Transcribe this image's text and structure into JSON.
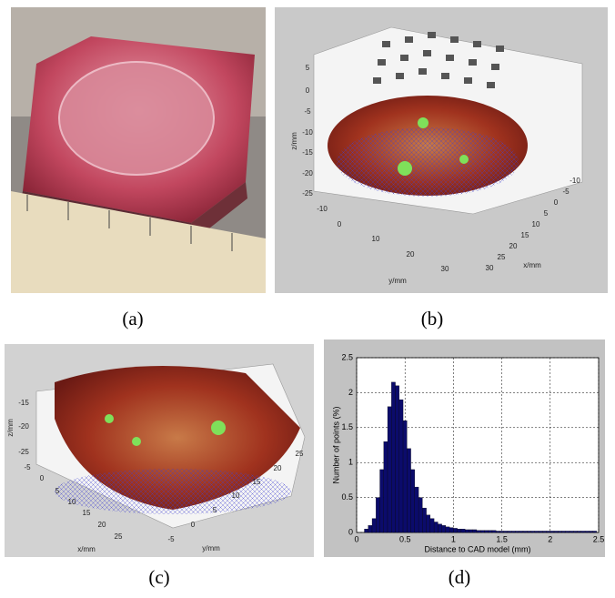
{
  "captions": [
    "(a)",
    "(b)",
    "(c)",
    "(d)"
  ],
  "panel_b": {
    "z_label": "z/mm",
    "y_label": "y/mm",
    "x_label": "x/mm",
    "zticks": [
      5,
      0,
      -5,
      -10,
      -15,
      -20,
      -25
    ],
    "yticks": [
      -10,
      0,
      10,
      20,
      30
    ],
    "xticks": [
      -10,
      -5,
      0,
      5,
      10,
      15,
      20,
      25,
      30
    ]
  },
  "panel_c": {
    "z_label": "z/mm",
    "x_label": "x/mm",
    "y_label": "y/mm",
    "zticks": [
      -15,
      -20,
      -25
    ],
    "xticks": [
      -5,
      0,
      5,
      10,
      15,
      20,
      25
    ],
    "yticks": [
      -5,
      0,
      5,
      10,
      15,
      20,
      25
    ]
  },
  "chart_data": {
    "type": "histogram",
    "x_label": "Distance to CAD model (mm)",
    "y_label": "Number of points (%)",
    "color": "#0b0b6b",
    "grid": true,
    "xlim": [
      0,
      2.5
    ],
    "xticks": [
      0,
      0.5,
      1,
      1.5,
      2,
      2.5
    ],
    "ylim": [
      0,
      2.5
    ],
    "yticks": [
      0,
      0.5,
      1,
      1.5,
      2,
      2.5
    ],
    "bins": [
      0.08,
      0.12,
      0.16,
      0.2,
      0.24,
      0.28,
      0.32,
      0.36,
      0.4,
      0.44,
      0.48,
      0.52,
      0.56,
      0.6,
      0.64,
      0.68,
      0.72,
      0.76,
      0.8,
      0.84,
      0.88,
      0.92,
      0.96,
      1,
      1.04,
      1.08,
      1.12,
      1.16,
      1.2,
      1.24,
      1.28,
      1.32,
      1.36,
      1.4,
      1.44,
      1.48,
      1.52,
      1.56,
      1.6,
      1.64,
      1.68,
      1.72,
      1.76,
      1.8,
      1.84,
      1.88,
      1.92,
      1.96,
      2,
      2.04,
      2.08,
      2.12,
      2.16,
      2.2,
      2.24,
      2.28,
      2.32,
      2.36,
      2.4,
      2.44,
      2.48
    ],
    "values": [
      0.05,
      0.1,
      0.2,
      0.5,
      0.9,
      1.3,
      1.8,
      2.15,
      2.1,
      1.9,
      1.6,
      1.2,
      0.9,
      0.65,
      0.5,
      0.35,
      0.25,
      0.2,
      0.15,
      0.12,
      0.1,
      0.08,
      0.07,
      0.06,
      0.05,
      0.05,
      0.04,
      0.04,
      0.04,
      0.03,
      0.03,
      0.03,
      0.03,
      0.03,
      0.02,
      0.02,
      0.02,
      0.02,
      0.02,
      0.02,
      0.02,
      0.02,
      0.02,
      0.02,
      0.02,
      0.02,
      0.02,
      0.02,
      0.02,
      0.02,
      0.02,
      0.02,
      0.02,
      0.02,
      0.02,
      0.02,
      0.02,
      0.02,
      0.02,
      0.02
    ]
  }
}
